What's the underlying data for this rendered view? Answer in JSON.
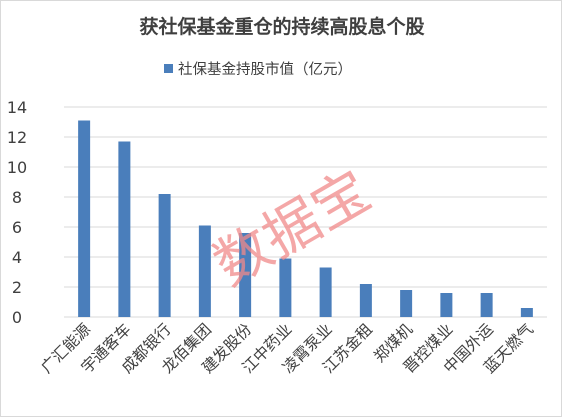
{
  "chart_data": {
    "type": "bar",
    "title": "获社保基金重仓的持续高股息个股",
    "legend": {
      "position": "top-center"
    },
    "categories": [
      "广汇能源",
      "宇通客车",
      "成都银行",
      "龙佰集团",
      "建发股份",
      "江中药业",
      "凌霄泵业",
      "江苏金租",
      "郑煤机",
      "晋控煤业",
      "中国外运",
      "蓝天燃气"
    ],
    "series": [
      {
        "name": "社保基金持股市值（亿元）",
        "values": [
          13.1,
          11.7,
          8.2,
          6.1,
          5.6,
          3.9,
          3.3,
          2.2,
          1.8,
          1.6,
          1.6,
          0.6
        ],
        "color": "#4a7ebb"
      }
    ],
    "y_ticks": [
      "0",
      "2",
      "4",
      "6",
      "8",
      "10",
      "12",
      "14"
    ],
    "ylim": [
      0,
      14
    ],
    "grid": true,
    "xlabel": "",
    "ylabel": ""
  },
  "watermark": {
    "text": "数据宝",
    "color": "#f08a8a"
  },
  "colors": {
    "grid": "#d9d9d9",
    "axis_text": "#404040",
    "title_text": "#3f3f3f"
  }
}
